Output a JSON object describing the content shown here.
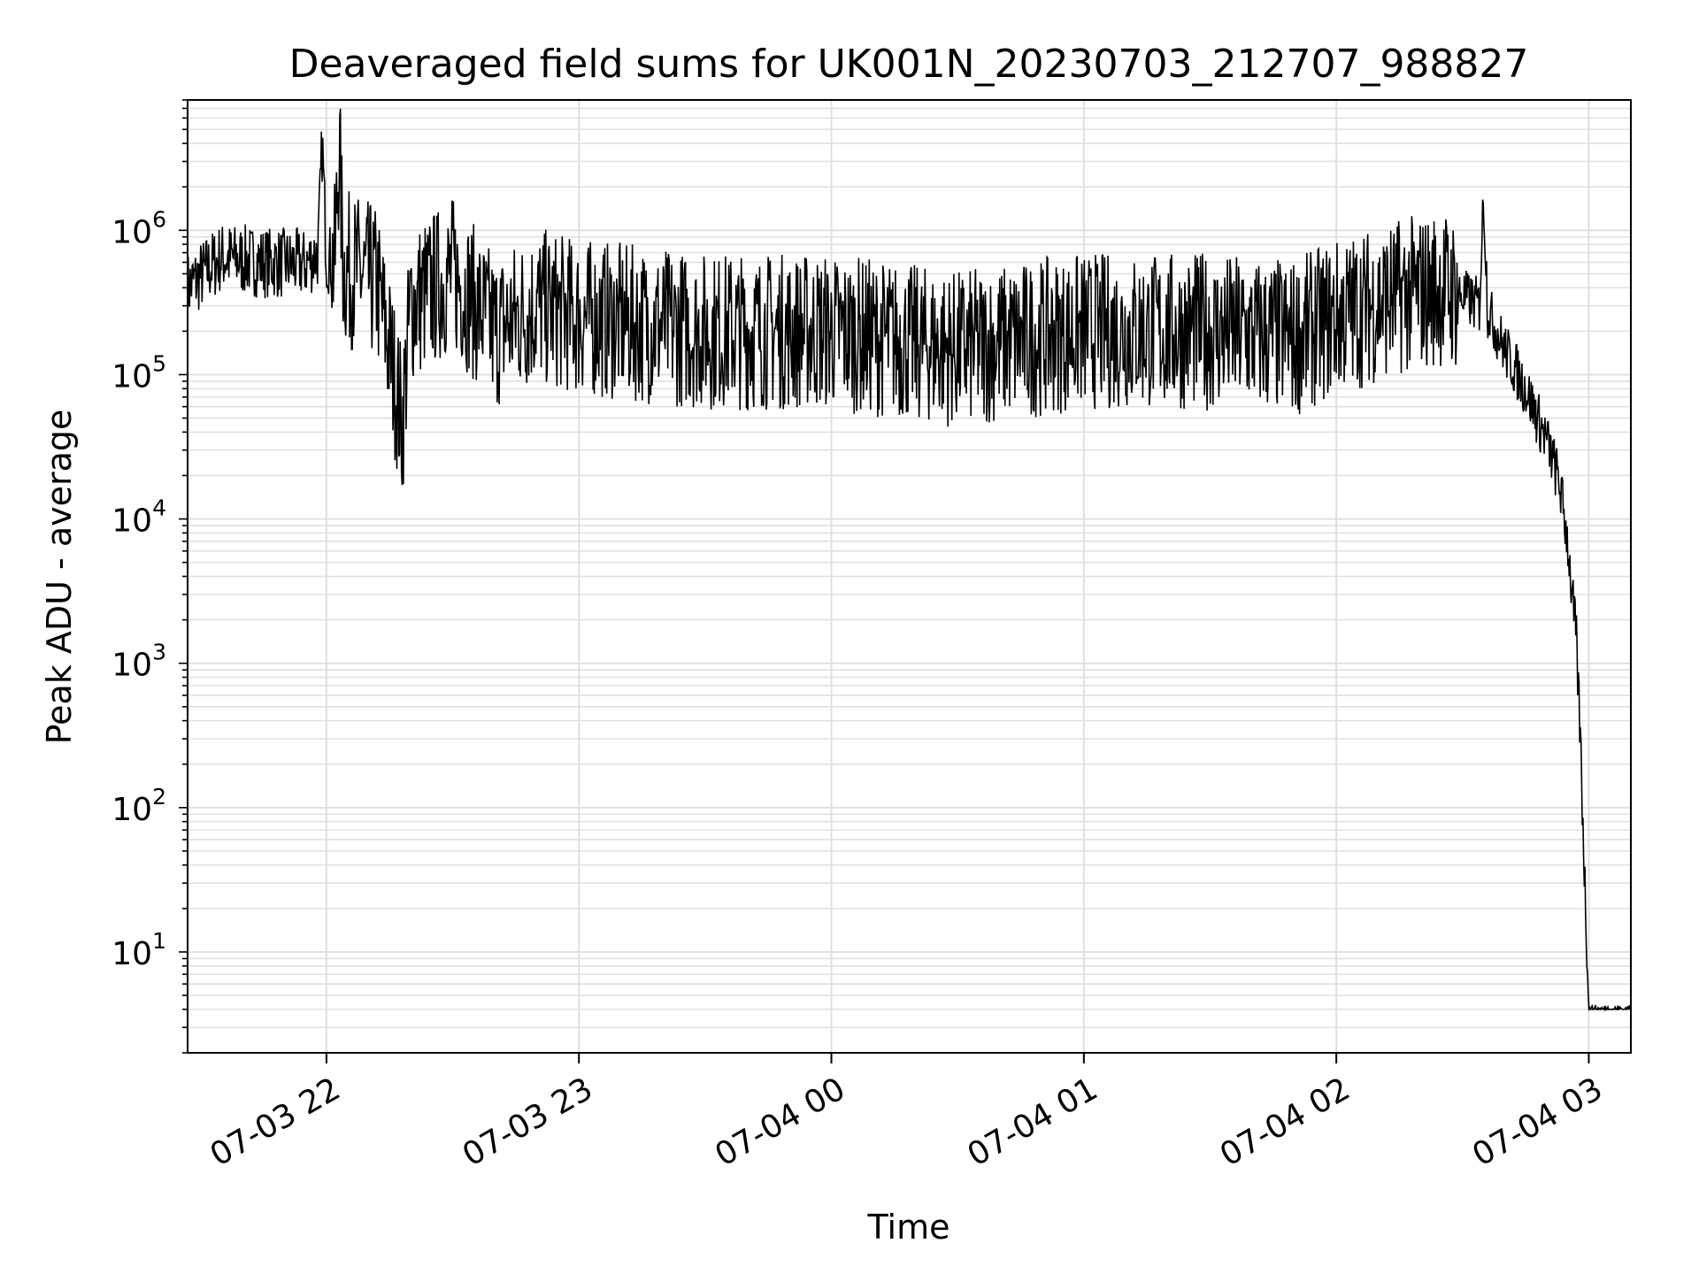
{
  "chart_data": {
    "type": "line",
    "title": "Deaveraged field sums for UK001N_20230703_212707_988827",
    "xlabel": "Time",
    "ylabel": "Peak ADU - average",
    "yscale": "log",
    "ylim": [
      2,
      8000000
    ],
    "xlim": [
      "2023-07-03 21:27",
      "2023-07-04 03:10"
    ],
    "grid": true,
    "line_color": "#000000",
    "grid_color": "#e0e0e0",
    "x_ticks": [
      {
        "t": "2023-07-03 22:00",
        "label": "07-03 22"
      },
      {
        "t": "2023-07-03 23:00",
        "label": "07-03 23"
      },
      {
        "t": "2023-07-04 00:00",
        "label": "07-04 00"
      },
      {
        "t": "2023-07-04 01:00",
        "label": "07-04 01"
      },
      {
        "t": "2023-07-04 02:00",
        "label": "07-04 02"
      },
      {
        "t": "2023-07-04 03:00",
        "label": "07-04 03"
      }
    ],
    "y_ticks": [
      {
        "value": 10,
        "base": "10",
        "exp": "1"
      },
      {
        "value": 100,
        "base": "10",
        "exp": "2"
      },
      {
        "value": 1000,
        "base": "10",
        "exp": "3"
      },
      {
        "value": 10000,
        "base": "10",
        "exp": "4"
      },
      {
        "value": 100000,
        "base": "10",
        "exp": "5"
      },
      {
        "value": 1000000,
        "base": "10",
        "exp": "6"
      }
    ],
    "series": [
      {
        "x": [
          "2023-07-03 21:27",
          "2023-07-03 21:35",
          "2023-07-03 21:45",
          "2023-07-03 21:55",
          "2023-07-03 21:58",
          "2023-07-03 21:59",
          "2023-07-03 22:00",
          "2023-07-03 22:02",
          "2023-07-03 22:03",
          "2023-07-03 22:04",
          "2023-07-03 22:08",
          "2023-07-03 22:12",
          "2023-07-03 22:15",
          "2023-07-03 22:18",
          "2023-07-03 22:20",
          "2023-07-03 22:30",
          "2023-07-03 22:40",
          "2023-07-03 22:50",
          "2023-07-03 23:00",
          "2023-07-03 23:30",
          "2023-07-04 00:00",
          "2023-07-04 00:30",
          "2023-07-04 01:00",
          "2023-07-04 01:30",
          "2023-07-04 01:50",
          "2023-07-04 02:00",
          "2023-07-04 02:15",
          "2023-07-04 02:25",
          "2023-07-04 02:30",
          "2023-07-04 02:34",
          "2023-07-04 02:35",
          "2023-07-04 02:36",
          "2023-07-04 02:40",
          "2023-07-04 02:45",
          "2023-07-04 02:50",
          "2023-07-04 02:53",
          "2023-07-04 02:55",
          "2023-07-04 02:56",
          "2023-07-04 02:57",
          "2023-07-04 02:58",
          "2023-07-04 03:00",
          "2023-07-04 03:10"
        ],
        "y": [
          400000,
          650000,
          600000,
          580000,
          700000,
          4000000,
          650000,
          600000,
          4000000,
          550000,
          500000,
          420000,
          150000,
          45000,
          300000,
          500000,
          200000,
          300000,
          250000,
          200000,
          200000,
          150000,
          200000,
          200000,
          180000,
          250000,
          350000,
          400000,
          350000,
          300000,
          1800000,
          280000,
          150000,
          80000,
          35000,
          18000,
          7000,
          3000,
          1500,
          300,
          4,
          4
        ]
      }
    ]
  }
}
